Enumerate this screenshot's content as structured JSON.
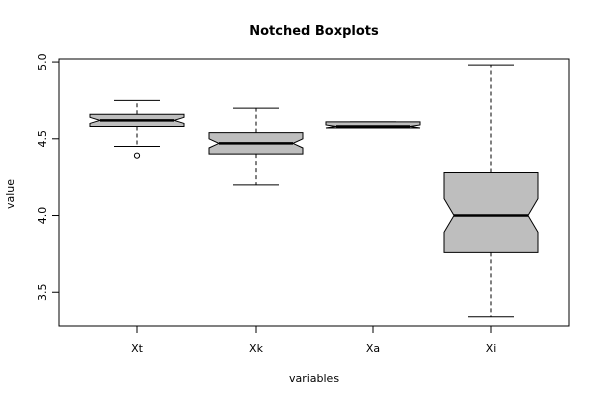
{
  "chart_data": {
    "type": "boxplot",
    "title": "Notched Boxplots",
    "xlabel": "variables",
    "ylabel": "value",
    "ylim": [
      3.28,
      5.02
    ],
    "yticks": [
      "3.5",
      "4.0",
      "4.5",
      "5.0"
    ],
    "notched": true,
    "fill_color": "#bebebe",
    "series": [
      {
        "category": "Xt",
        "whisker_low": 4.45,
        "q1": 4.58,
        "median": 4.62,
        "q3": 4.66,
        "whisker_high": 4.75,
        "notch_low": 4.6,
        "notch_high": 4.64,
        "outliers": [
          4.39
        ]
      },
      {
        "category": "Xk",
        "whisker_low": 4.2,
        "q1": 4.4,
        "median": 4.47,
        "q3": 4.54,
        "whisker_high": 4.7,
        "notch_low": 4.44,
        "notch_high": 4.5,
        "outliers": []
      },
      {
        "category": "Xa",
        "whisker_low": 4.57,
        "q1": 4.57,
        "median": 4.58,
        "q3": 4.61,
        "whisker_high": 4.61,
        "notch_low": 4.57,
        "notch_high": 4.59,
        "outliers": []
      },
      {
        "category": "Xi",
        "whisker_low": 3.34,
        "q1": 3.76,
        "median": 4.0,
        "q3": 4.28,
        "whisker_high": 4.98,
        "notch_low": 3.89,
        "notch_high": 4.11,
        "outliers": []
      }
    ]
  }
}
